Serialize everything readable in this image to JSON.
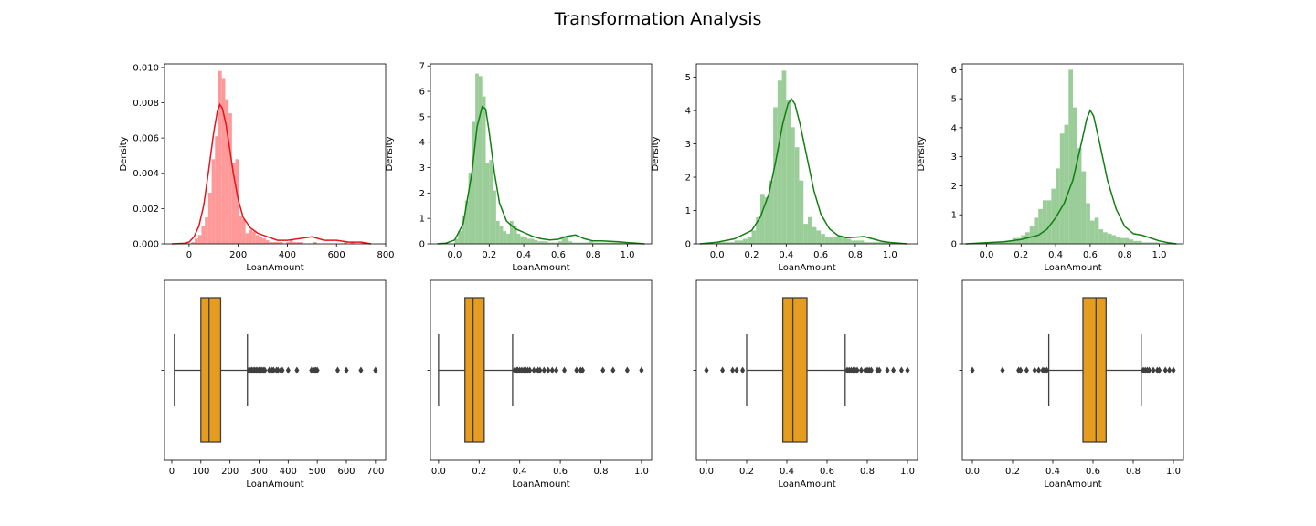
{
  "figure": {
    "title": "Transformation Analysis"
  },
  "colors": {
    "hist_first": "#ff9999",
    "kde_first": "#e8141b",
    "hist_rest": "#9acd98",
    "kde_rest": "#117f11",
    "box": "#e69c1e",
    "box_line": "#3f3f3f"
  },
  "chart_data": [
    {
      "type": "histogram",
      "xlabel": "LoanAmount",
      "ylabel": "Density",
      "xlim": [
        -100,
        800
      ],
      "ylim": [
        0,
        0.0102
      ],
      "xticks": [
        0,
        200,
        400,
        600,
        800
      ],
      "yticks": [
        0.0,
        0.002,
        0.004,
        0.006,
        0.008,
        0.01
      ],
      "xtick_labels": [
        "0",
        "200",
        "400",
        "600",
        "800"
      ],
      "ytick_labels": [
        "0.000",
        "0.002",
        "0.004",
        "0.006",
        "0.008",
        "0.010"
      ],
      "color": "first",
      "bins": {
        "start": 9,
        "width": 13.8,
        "values": [
          0.0001,
          0.0003,
          0.0005,
          0.001,
          0.0015,
          0.0029,
          0.0048,
          0.0061,
          0.0098,
          0.0094,
          0.0082,
          0.0074,
          0.0046,
          0.0048,
          0.0016,
          0.0014,
          0.0006,
          0.0008,
          0.0007,
          0.0005,
          0.0004,
          0.0003,
          0.0002,
          0.0001,
          0.0001,
          0.0001,
          0.0001,
          0.0,
          0.0001,
          0.0002,
          0.0001,
          0.0001,
          0.0001,
          0.0,
          0.0,
          0.0,
          0.0001,
          0.0,
          0.0,
          0.0,
          0.0,
          0.0,
          0.0,
          0.0,
          0.0,
          0.0001,
          0.0,
          0.0001,
          0.0,
          0.0,
          0.0001
        ]
      },
      "kde": {
        "x": [
          -70,
          -20,
          0,
          20,
          40,
          60,
          80,
          100,
          115,
          125,
          135,
          150,
          165,
          180,
          200,
          220,
          250,
          280,
          320,
          360,
          400,
          450,
          500,
          550,
          600,
          650,
          700,
          740
        ],
        "y": [
          0,
          3e-05,
          0.0001,
          0.0004,
          0.001,
          0.0022,
          0.0042,
          0.0063,
          0.0075,
          0.0079,
          0.0077,
          0.0068,
          0.0054,
          0.004,
          0.0025,
          0.0015,
          0.0009,
          0.0006,
          0.0004,
          0.0002,
          0.0002,
          0.0003,
          0.0004,
          0.0002,
          0.0002,
          0.0001,
          0.0001,
          0.0
        ]
      }
    },
    {
      "type": "histogram",
      "xlabel": "LoanAmount",
      "ylabel": "Density",
      "xlim": [
        -0.14,
        1.14
      ],
      "ylim": [
        0,
        7.08
      ],
      "xticks": [
        0.0,
        0.2,
        0.4,
        0.6,
        0.8,
        1.0
      ],
      "yticks": [
        0,
        1,
        2,
        3,
        4,
        5,
        6,
        7
      ],
      "xtick_labels": [
        "0.0",
        "0.2",
        "0.4",
        "0.6",
        "0.8",
        "1.0"
      ],
      "ytick_labels": [
        "0",
        "1",
        "2",
        "3",
        "4",
        "5",
        "6",
        "7"
      ],
      "color": "rest",
      "bins": {
        "start": 0.0,
        "width": 0.02,
        "values": [
          0.2,
          0.5,
          1.1,
          1.7,
          2.8,
          4.8,
          6.7,
          6.6,
          5.8,
          3.2,
          3.3,
          2.1,
          0.9,
          0.7,
          0.5,
          0.4,
          0.9,
          0.7,
          0.4,
          0.3,
          0.25,
          0.2,
          0.2,
          0.15,
          0.1,
          0.1,
          0.1,
          0.05,
          0.05,
          0.05,
          0.1,
          0.3,
          0.3,
          0.1,
          0.05,
          0.05,
          0.05,
          0.05,
          0.05,
          0.1,
          0.05,
          0.05,
          0.05,
          0.05,
          0.05,
          0.05,
          0.05,
          0.05,
          0.05,
          0.05
        ]
      },
      "kde": {
        "x": [
          -0.1,
          -0.05,
          0.0,
          0.05,
          0.1,
          0.13,
          0.16,
          0.18,
          0.2,
          0.23,
          0.26,
          0.3,
          0.35,
          0.4,
          0.45,
          0.5,
          0.55,
          0.6,
          0.65,
          0.7,
          0.75,
          0.8,
          0.85,
          0.9,
          0.95,
          1.0,
          1.05,
          1.1
        ],
        "y": [
          0,
          0.03,
          0.15,
          0.8,
          2.8,
          4.6,
          5.4,
          5.3,
          4.4,
          2.8,
          1.6,
          0.9,
          0.6,
          0.45,
          0.3,
          0.2,
          0.15,
          0.18,
          0.3,
          0.35,
          0.2,
          0.12,
          0.12,
          0.1,
          0.08,
          0.05,
          0.03,
          0.0
        ]
      }
    },
    {
      "type": "histogram",
      "xlabel": "LoanAmount",
      "ylabel": "Density",
      "xlim": [
        -0.12,
        1.16
      ],
      "ylim": [
        0,
        5.4
      ],
      "xticks": [
        0.0,
        0.2,
        0.4,
        0.6,
        0.8,
        1.0
      ],
      "yticks": [
        0,
        1,
        2,
        3,
        4,
        5
      ],
      "xtick_labels": [
        "0.0",
        "0.2",
        "0.4",
        "0.6",
        "0.8",
        "1.0"
      ],
      "ytick_labels": [
        "0",
        "1",
        "2",
        "3",
        "4",
        "5"
      ],
      "color": "rest",
      "bins": {
        "start": 0.0,
        "width": 0.025,
        "values": [
          0.05,
          0.05,
          0.05,
          0.05,
          0.1,
          0.1,
          0.15,
          0.2,
          0.4,
          0.8,
          1.5,
          1.4,
          1.9,
          4.1,
          4.9,
          5.2,
          4.3,
          3.5,
          2.9,
          1.9,
          0.6,
          0.8,
          0.5,
          0.4,
          0.3,
          0.2,
          0.2,
          0.2,
          0.25,
          0.2,
          0.15,
          0.1,
          0.1,
          0.1,
          0.05,
          0.05,
          0.05,
          0.05,
          0.05,
          0.05
        ]
      },
      "kde": {
        "x": [
          -0.1,
          0.0,
          0.1,
          0.2,
          0.25,
          0.3,
          0.34,
          0.38,
          0.41,
          0.43,
          0.45,
          0.48,
          0.52,
          0.56,
          0.6,
          0.65,
          0.7,
          0.75,
          0.8,
          0.85,
          0.9,
          0.95,
          1.0,
          1.05,
          1.1
        ],
        "y": [
          0,
          0.05,
          0.15,
          0.4,
          0.8,
          1.5,
          2.5,
          3.6,
          4.2,
          4.35,
          4.2,
          3.6,
          2.6,
          1.6,
          0.9,
          0.45,
          0.25,
          0.18,
          0.2,
          0.22,
          0.15,
          0.08,
          0.04,
          0.02,
          0.0
        ]
      }
    },
    {
      "type": "histogram",
      "xlabel": "LoanAmount",
      "ylabel": "Density",
      "xlim": [
        -0.14,
        1.14
      ],
      "ylim": [
        0,
        6.2
      ],
      "xticks": [
        0.0,
        0.2,
        0.4,
        0.6,
        0.8,
        1.0
      ],
      "yticks": [
        0,
        1,
        2,
        3,
        4,
        5,
        6
      ],
      "xtick_labels": [
        "0.0",
        "0.2",
        "0.4",
        "0.6",
        "0.8",
        "1.0"
      ],
      "ytick_labels": [
        "0",
        "1",
        "2",
        "3",
        "4",
        "5",
        "6"
      ],
      "color": "rest",
      "bins": {
        "start": 0.0,
        "width": 0.025,
        "values": [
          0.05,
          0.05,
          0.05,
          0.05,
          0.1,
          0.1,
          0.2,
          0.2,
          0.3,
          0.4,
          0.6,
          0.9,
          1.2,
          1.5,
          1.5,
          1.9,
          2.6,
          3.8,
          4.1,
          6.0,
          4.7,
          3.3,
          2.5,
          1.4,
          0.8,
          0.9,
          0.5,
          0.4,
          0.35,
          0.3,
          0.25,
          0.2,
          0.2,
          0.15,
          0.1,
          0.1,
          0.05,
          0.05,
          0.05,
          0.05
        ]
      },
      "kde": {
        "x": [
          -0.12,
          0.0,
          0.1,
          0.2,
          0.3,
          0.35,
          0.4,
          0.45,
          0.5,
          0.55,
          0.58,
          0.6,
          0.62,
          0.65,
          0.7,
          0.75,
          0.8,
          0.85,
          0.9,
          0.95,
          1.0,
          1.05,
          1.1
        ],
        "y": [
          0,
          0.04,
          0.07,
          0.15,
          0.3,
          0.5,
          0.9,
          1.4,
          2.2,
          3.5,
          4.3,
          4.6,
          4.4,
          3.6,
          2.2,
          1.2,
          0.6,
          0.35,
          0.3,
          0.2,
          0.1,
          0.04,
          0.0
        ]
      }
    },
    {
      "type": "boxplot",
      "xlabel": "LoanAmount",
      "xlim": [
        -25,
        735
      ],
      "xticks": [
        0,
        100,
        200,
        300,
        400,
        500,
        600,
        700
      ],
      "xtick_labels": [
        "0",
        "100",
        "200",
        "300",
        "400",
        "500",
        "600",
        "700"
      ],
      "whisker_low": 9,
      "q1": 100,
      "median": 128,
      "q3": 168,
      "whisker_high": 260,
      "outliers": [
        265,
        270,
        275,
        280,
        285,
        290,
        295,
        300,
        305,
        310,
        315,
        320,
        335,
        345,
        350,
        360,
        365,
        375,
        380,
        400,
        430,
        480,
        490,
        495,
        500,
        570,
        600,
        650,
        700
      ]
    },
    {
      "type": "boxplot",
      "xlabel": "LoanAmount",
      "xlim": [
        -0.04,
        1.05
      ],
      "xticks": [
        0.0,
        0.2,
        0.4,
        0.6,
        0.8,
        1.0
      ],
      "xtick_labels": [
        "0.0",
        "0.2",
        "0.4",
        "0.6",
        "0.8",
        "1.0"
      ],
      "whisker_low": 0.0,
      "q1": 0.13,
      "median": 0.17,
      "q3": 0.225,
      "whisker_high": 0.365,
      "outliers": [
        0.375,
        0.385,
        0.39,
        0.4,
        0.41,
        0.42,
        0.43,
        0.44,
        0.45,
        0.47,
        0.49,
        0.5,
        0.52,
        0.54,
        0.56,
        0.58,
        0.62,
        0.68,
        0.7,
        0.71,
        0.81,
        0.86,
        0.93,
        1.0
      ]
    },
    {
      "type": "boxplot",
      "xlabel": "LoanAmount",
      "xlim": [
        -0.05,
        1.05
      ],
      "xticks": [
        0.0,
        0.2,
        0.4,
        0.6,
        0.8,
        1.0
      ],
      "xtick_labels": [
        "0.0",
        "0.2",
        "0.4",
        "0.6",
        "0.8",
        "1.0"
      ],
      "whisker_low": 0.2,
      "q1": 0.38,
      "median": 0.43,
      "q3": 0.5,
      "whisker_high": 0.69,
      "outliers": [
        0.0,
        0.08,
        0.13,
        0.15,
        0.18,
        0.7,
        0.71,
        0.72,
        0.73,
        0.74,
        0.75,
        0.77,
        0.79,
        0.8,
        0.81,
        0.82,
        0.85,
        0.86,
        0.9,
        0.93,
        0.97,
        1.0
      ]
    },
    {
      "type": "boxplot",
      "xlabel": "LoanAmount",
      "xlim": [
        -0.05,
        1.05
      ],
      "xticks": [
        0.0,
        0.2,
        0.4,
        0.6,
        0.8,
        1.0
      ],
      "xtick_labels": [
        "0.0",
        "0.2",
        "0.4",
        "0.6",
        "0.8",
        "1.0"
      ],
      "whisker_low": 0.38,
      "q1": 0.55,
      "median": 0.615,
      "q3": 0.665,
      "whisker_high": 0.84,
      "outliers": [
        0.0,
        0.15,
        0.23,
        0.24,
        0.27,
        0.31,
        0.33,
        0.35,
        0.36,
        0.37,
        0.85,
        0.86,
        0.87,
        0.88,
        0.9,
        0.92,
        0.93,
        0.96,
        0.98,
        1.0
      ]
    }
  ]
}
